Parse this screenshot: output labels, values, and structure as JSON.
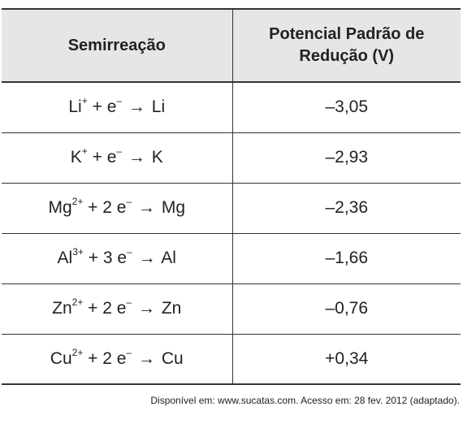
{
  "table": {
    "headers": {
      "reaction": "Semirreação",
      "potential_line1": "Potencial Padrão de",
      "potential_line2": "Redução (V)"
    },
    "rows": [
      {
        "ion": "Li",
        "charge": "+",
        "electrons": "",
        "product": "Li",
        "potential": "–3,05"
      },
      {
        "ion": "K",
        "charge": "+",
        "electrons": "",
        "product": "K",
        "potential": "–2,93"
      },
      {
        "ion": "Mg",
        "charge": "2+",
        "electrons": "2 ",
        "product": "Mg",
        "potential": "–2,36"
      },
      {
        "ion": "Al",
        "charge": "3+",
        "electrons": "3 ",
        "product": "Al",
        "potential": "–1,66"
      },
      {
        "ion": "Zn",
        "charge": "2+",
        "electrons": "2 ",
        "product": "Zn",
        "potential": "–0,76"
      },
      {
        "ion": "Cu",
        "charge": "2+",
        "electrons": "2 ",
        "product": "Cu",
        "potential": "+0,34"
      }
    ],
    "electron_symbol": "e",
    "electron_charge": "–",
    "plus_sign": "+",
    "arrow": "→"
  },
  "source": "Disponível em: www.sucatas.com. Acesso em: 28 fev. 2012 (adaptado)."
}
